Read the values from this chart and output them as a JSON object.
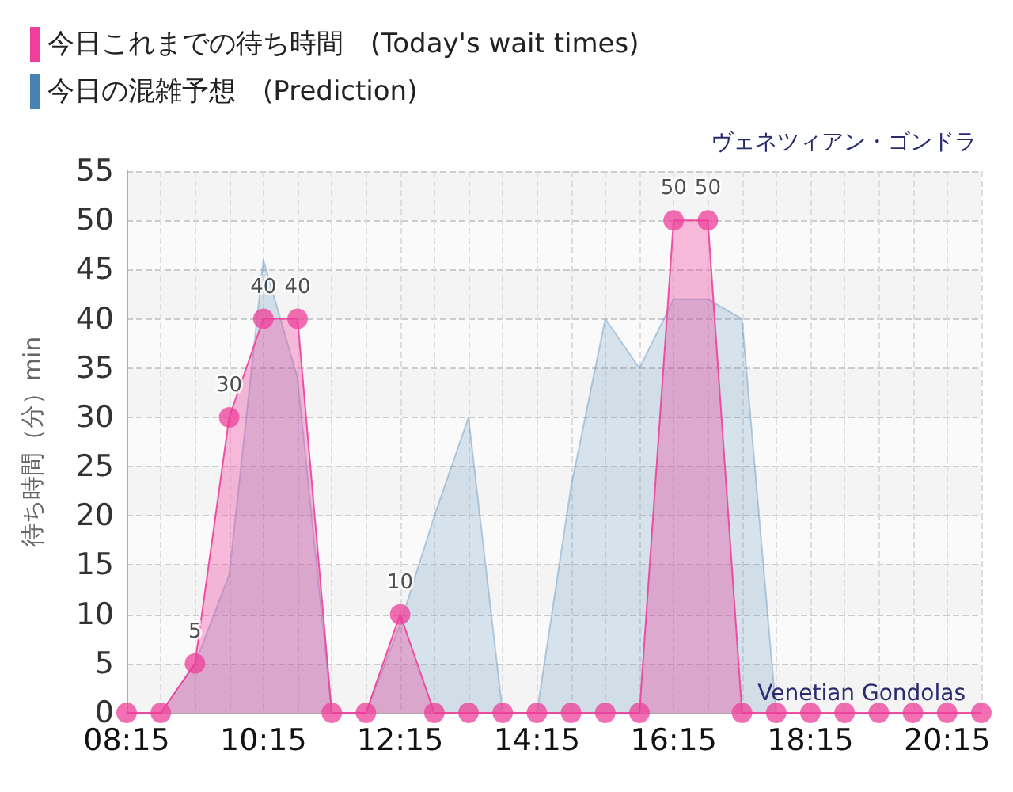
{
  "chart_data": {
    "type": "area",
    "title": "ヴェネツィアン・ゴンドラ",
    "ylabel": "待ち時間（分）min",
    "annotations": [
      "Venetian Gondolas"
    ],
    "series": [
      {
        "name": "今日これまでの待ち時間　(Today's wait times)",
        "color": "#ee3f9a",
        "marker": "circle",
        "x": [
          8.25,
          8.75,
          9.25,
          9.75,
          10.25,
          10.75,
          11.25,
          11.75,
          12.25,
          12.75,
          13.25,
          13.75,
          14.25,
          14.75,
          15.25,
          15.75,
          16.25,
          16.75,
          17.25,
          17.75,
          18.25,
          18.75,
          19.25,
          19.75,
          20.25,
          20.75
        ],
        "values": [
          0,
          0,
          5,
          30,
          40,
          40,
          0,
          0,
          10,
          0,
          0,
          0,
          0,
          0,
          0,
          0,
          50,
          50,
          0,
          0,
          0,
          0,
          0,
          0,
          0,
          0
        ],
        "value_labels": [
          null,
          null,
          "5",
          "30",
          "40",
          "40",
          null,
          null,
          "10",
          null,
          null,
          null,
          null,
          null,
          null,
          null,
          "50",
          "50",
          null,
          null,
          null,
          null,
          null,
          null,
          null,
          null
        ]
      },
      {
        "name": "今日の混雑予想　(Prediction)",
        "color": "#4682b4",
        "marker": "none",
        "x": [
          8.25,
          8.75,
          9.25,
          9.75,
          10.25,
          10.75,
          11.25,
          11.75,
          12.25,
          12.75,
          13.25,
          13.75,
          14.25,
          14.75,
          15.25,
          15.75,
          16.25,
          16.75,
          17.25,
          17.75
        ],
        "values": [
          0,
          0,
          5,
          14,
          46,
          34,
          0,
          0,
          9,
          20,
          30,
          0,
          0,
          23,
          40,
          35,
          42,
          42,
          40,
          0
        ]
      }
    ],
    "xlim": [
      8.25,
      20.75
    ],
    "xticks": [
      {
        "value": 8.25,
        "label": "08:15"
      },
      {
        "value": 8.75,
        "label": null
      },
      {
        "value": 9.25,
        "label": null
      },
      {
        "value": 9.75,
        "label": null
      },
      {
        "value": 10.25,
        "label": "10:15"
      },
      {
        "value": 10.75,
        "label": null
      },
      {
        "value": 11.25,
        "label": null
      },
      {
        "value": 11.75,
        "label": null
      },
      {
        "value": 12.25,
        "label": "12:15"
      },
      {
        "value": 12.75,
        "label": null
      },
      {
        "value": 13.25,
        "label": null
      },
      {
        "value": 13.75,
        "label": null
      },
      {
        "value": 14.25,
        "label": "14:15"
      },
      {
        "value": 14.75,
        "label": null
      },
      {
        "value": 15.25,
        "label": null
      },
      {
        "value": 15.75,
        "label": null
      },
      {
        "value": 16.25,
        "label": "16:15"
      },
      {
        "value": 16.75,
        "label": null
      },
      {
        "value": 17.25,
        "label": null
      },
      {
        "value": 17.75,
        "label": null
      },
      {
        "value": 18.25,
        "label": "18:15"
      },
      {
        "value": 18.75,
        "label": null
      },
      {
        "value": 19.25,
        "label": null
      },
      {
        "value": 19.75,
        "label": null
      },
      {
        "value": 20.25,
        "label": "20:15"
      },
      {
        "value": 20.75,
        "label": null
      }
    ],
    "ylim": [
      0,
      55
    ],
    "yticks": [
      0,
      5,
      10,
      15,
      20,
      25,
      30,
      35,
      40,
      45,
      50,
      55
    ],
    "grid": true,
    "legend": "top left"
  }
}
